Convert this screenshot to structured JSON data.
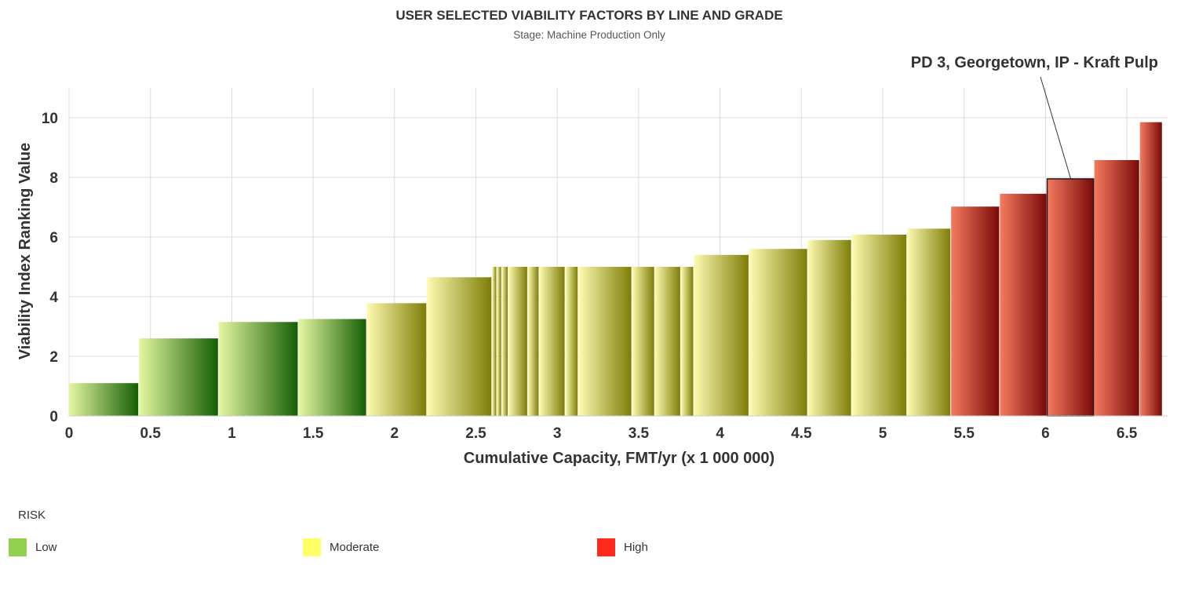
{
  "chart_data": {
    "type": "bar",
    "variant": "variable-width cumulative capacity (marimekko-style)",
    "title": "USER SELECTED VIABILITY FACTORS BY LINE AND GRADE",
    "subtitle": "Stage: Machine Production Only",
    "xlabel": "Cumulative Capacity, FMT/yr (x 1 000 000)",
    "ylabel": "Viability Index Ranking Value",
    "xlim": [
      0,
      6.75
    ],
    "ylim": [
      0,
      11
    ],
    "x_ticks": [
      0,
      0.5,
      1,
      1.5,
      2,
      2.5,
      3,
      3.5,
      4,
      4.5,
      5,
      5.5,
      6,
      6.5
    ],
    "x_tick_labels": [
      "0",
      "0.5",
      "1",
      "1.5",
      "2",
      "2.5",
      "3",
      "3.5",
      "4",
      "4.5",
      "5",
      "5.5",
      "6",
      "6.5"
    ],
    "y_ticks": [
      0,
      2,
      4,
      6,
      8,
      10
    ],
    "y_tick_labels": [
      "0",
      "2",
      "4",
      "6",
      "8",
      "10"
    ],
    "grid": true,
    "bars": [
      {
        "x0": 0.0,
        "x1": 0.43,
        "value": 1.1,
        "risk": "low"
      },
      {
        "x0": 0.43,
        "x1": 0.92,
        "value": 2.6,
        "risk": "low"
      },
      {
        "x0": 0.92,
        "x1": 1.41,
        "value": 3.15,
        "risk": "low"
      },
      {
        "x0": 1.41,
        "x1": 1.83,
        "value": 3.25,
        "risk": "low"
      },
      {
        "x0": 1.83,
        "x1": 2.2,
        "value": 3.78,
        "risk": "moderate"
      },
      {
        "x0": 2.2,
        "x1": 2.6,
        "value": 4.65,
        "risk": "moderate"
      },
      {
        "x0": 2.6,
        "x1": 2.63,
        "value": 5.0,
        "risk": "moderate"
      },
      {
        "x0": 2.63,
        "x1": 2.66,
        "value": 5.0,
        "risk": "moderate"
      },
      {
        "x0": 2.66,
        "x1": 2.7,
        "value": 5.0,
        "risk": "moderate"
      },
      {
        "x0": 2.7,
        "x1": 2.82,
        "value": 5.0,
        "risk": "moderate"
      },
      {
        "x0": 2.82,
        "x1": 2.89,
        "value": 5.0,
        "risk": "moderate"
      },
      {
        "x0": 2.89,
        "x1": 3.05,
        "value": 5.0,
        "risk": "moderate"
      },
      {
        "x0": 3.05,
        "x1": 3.13,
        "value": 5.0,
        "risk": "moderate"
      },
      {
        "x0": 3.13,
        "x1": 3.46,
        "value": 5.0,
        "risk": "moderate"
      },
      {
        "x0": 3.46,
        "x1": 3.6,
        "value": 5.0,
        "risk": "moderate"
      },
      {
        "x0": 3.6,
        "x1": 3.76,
        "value": 5.0,
        "risk": "moderate"
      },
      {
        "x0": 3.76,
        "x1": 3.84,
        "value": 5.0,
        "risk": "moderate"
      },
      {
        "x0": 3.84,
        "x1": 4.18,
        "value": 5.4,
        "risk": "moderate"
      },
      {
        "x0": 4.18,
        "x1": 4.54,
        "value": 5.6,
        "risk": "moderate"
      },
      {
        "x0": 4.54,
        "x1": 4.81,
        "value": 5.9,
        "risk": "moderate"
      },
      {
        "x0": 4.81,
        "x1": 5.15,
        "value": 6.08,
        "risk": "moderate"
      },
      {
        "x0": 5.15,
        "x1": 5.42,
        "value": 6.28,
        "risk": "moderate"
      },
      {
        "x0": 5.42,
        "x1": 5.72,
        "value": 7.02,
        "risk": "high"
      },
      {
        "x0": 5.72,
        "x1": 6.01,
        "value": 7.45,
        "risk": "high"
      },
      {
        "x0": 6.01,
        "x1": 6.3,
        "value": 7.95,
        "risk": "high",
        "highlight": true
      },
      {
        "x0": 6.3,
        "x1": 6.58,
        "value": 8.58,
        "risk": "high"
      },
      {
        "x0": 6.58,
        "x1": 6.72,
        "value": 9.85,
        "risk": "high"
      }
    ],
    "annotation": {
      "text": "PD 3, Georgetown, IP - Kraft Pulp",
      "bar_index": 24
    },
    "legend": {
      "title": "RISK",
      "placement": "bottom-left",
      "items": [
        {
          "key": "low",
          "label": "Low",
          "color": "#92d050"
        },
        {
          "key": "moderate",
          "label": "Moderate",
          "color": "#ffff66"
        },
        {
          "key": "high",
          "label": "High",
          "color": "#ff2a1a"
        }
      ]
    },
    "gradients": {
      "low": [
        "#e4f7a0",
        "#155e05"
      ],
      "moderate": [
        "#fdfbb0",
        "#7e7d08"
      ],
      "high": [
        "#f57a5f",
        "#7a0a08"
      ]
    }
  }
}
